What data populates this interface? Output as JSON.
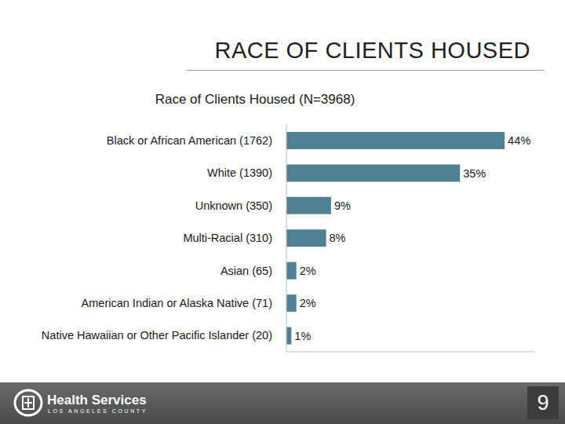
{
  "slide": {
    "title": "RACE OF CLIENTS HOUSED",
    "footer_logo": "Health Services",
    "footer_subtext": "LOS ANGELES COUNTY",
    "page_number": 9
  },
  "chart_data": {
    "type": "bar",
    "title": "Race of Clients Housed (N=3968)",
    "orientation": "horizontal",
    "categories": [
      "Black or African American (1762)",
      "White (1390)",
      "Unknown (350)",
      "Multi-Racial (310)",
      "Asian (65)",
      "American Indian or Alaska Native (71)",
      "Native Hawaiian or Other Pacific Islander (20)"
    ],
    "values": [
      44,
      35,
      9,
      8,
      2,
      2,
      1
    ],
    "value_labels": [
      "44%",
      "35%",
      "9%",
      "8%",
      "2%",
      "2%",
      "1%"
    ],
    "color": "#4f8094",
    "xlim": [
      0,
      50
    ],
    "grid": false,
    "data_labels": true,
    "tick_labels": "y"
  }
}
